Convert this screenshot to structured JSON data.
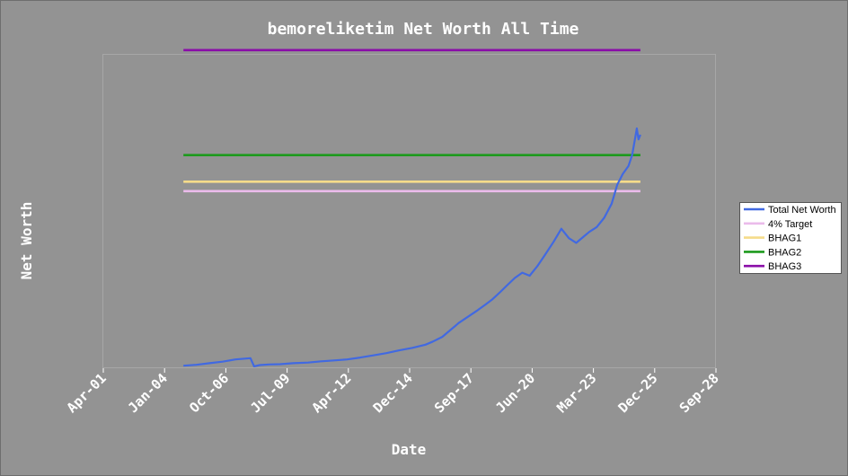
{
  "chart_data": {
    "type": "line",
    "title": "bemoreliketim Net Worth All Time",
    "xlabel": "Date",
    "ylabel": "Net Worth",
    "x_ticks": [
      "Apr-01",
      "Jan-04",
      "Oct-06",
      "Jul-09",
      "Apr-12",
      "Dec-14",
      "Sep-17",
      "Jun-20",
      "Mar-23",
      "Dec-25",
      "Sep-28"
    ],
    "xlim": [
      "2001-04-01",
      "2028-09-01"
    ],
    "y_ticks_shown": false,
    "ylim": [
      0,
      100
    ],
    "grid": false,
    "legend_position": "right",
    "series": [
      {
        "name": "Total Net Worth",
        "color": "#4169e1",
        "x": [
          "2004-11-01",
          "2005-06-01",
          "2006-01-01",
          "2006-08-01",
          "2007-03-01",
          "2007-11-01",
          "2008-01-01",
          "2008-04-01",
          "2008-09-01",
          "2009-03-01",
          "2009-10-01",
          "2010-06-01",
          "2011-01-01",
          "2011-08-01",
          "2012-03-01",
          "2012-10-01",
          "2013-05-01",
          "2013-12-01",
          "2014-07-01",
          "2015-02-01",
          "2015-09-01",
          "2016-01-01",
          "2016-06-01",
          "2016-10-01",
          "2017-03-01",
          "2017-08-01",
          "2018-01-01",
          "2018-05-01",
          "2018-09-01",
          "2019-01-01",
          "2019-05-01",
          "2019-09-01",
          "2020-01-01",
          "2020-05-01",
          "2020-09-01",
          "2021-01-01",
          "2021-06-01",
          "2021-10-01",
          "2022-02-01",
          "2022-06-01",
          "2022-10-01",
          "2023-01-01",
          "2023-05-01",
          "2023-09-01",
          "2024-01-01",
          "2024-04-01",
          "2024-07-01",
          "2024-10-01",
          "2024-12-01",
          "2025-01-15",
          "2025-02-15",
          "2025-03-15",
          "2025-04-15"
        ],
        "values": [
          0.8,
          1.1,
          1.6,
          2.1,
          2.8,
          3.2,
          0.6,
          1.0,
          1.2,
          1.3,
          1.6,
          1.8,
          2.2,
          2.5,
          2.8,
          3.4,
          4.1,
          4.8,
          5.7,
          6.5,
          7.5,
          8.5,
          10.0,
          12.0,
          14.5,
          16.5,
          18.5,
          20.2,
          22.0,
          24.2,
          26.5,
          28.8,
          30.5,
          29.5,
          32.5,
          36.0,
          40.5,
          44.5,
          41.5,
          40.0,
          42.0,
          43.5,
          45.0,
          48.0,
          52.5,
          58.5,
          62.0,
          64.5,
          68.0,
          73.0,
          76.5,
          73.0,
          74.5
        ]
      },
      {
        "name": "4% Target",
        "color": "#ebbbeb",
        "x": [
          "2004-11-01",
          "2025-04-15"
        ],
        "values": [
          56.5,
          56.5
        ]
      },
      {
        "name": "BHAG1",
        "color": "#f5dc8a",
        "x": [
          "2004-11-01",
          "2025-04-15"
        ],
        "values": [
          59.5,
          59.5
        ]
      },
      {
        "name": "BHAG2",
        "color": "#1d9a1d",
        "x": [
          "2004-11-01",
          "2025-04-15"
        ],
        "values": [
          68.0,
          68.0
        ]
      },
      {
        "name": "BHAG3",
        "color": "#8a0ea8",
        "x": [
          "2004-11-01",
          "2025-04-15"
        ],
        "values": [
          101.5,
          101.5
        ]
      }
    ]
  }
}
